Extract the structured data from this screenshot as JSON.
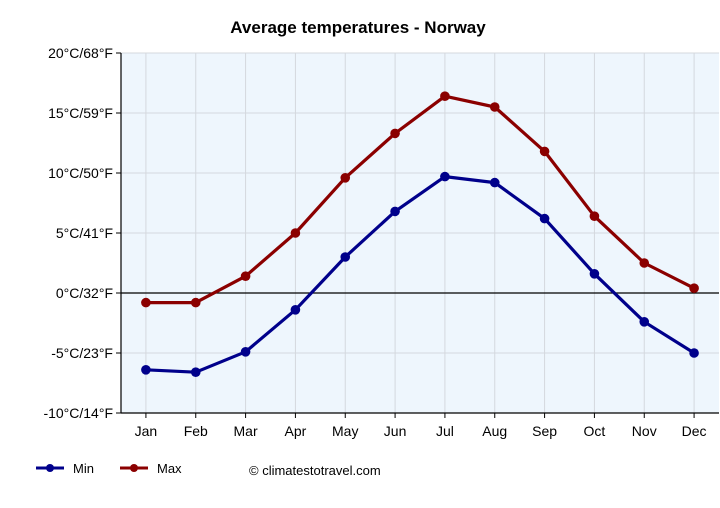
{
  "chart_data": {
    "type": "line",
    "title": "Average temperatures - Norway",
    "categories": [
      "Jan",
      "Feb",
      "Mar",
      "Apr",
      "May",
      "Jun",
      "Jul",
      "Aug",
      "Sep",
      "Oct",
      "Nov",
      "Dec"
    ],
    "y_tick_labels": [
      "20°C/68°F",
      "15°C/59°F",
      "10°C/50°F",
      "5°C/41°F",
      "0°C/32°F",
      "-5°C/23°F",
      "-10°C/14°F"
    ],
    "y_ticks": [
      20,
      15,
      10,
      5,
      0,
      -5,
      -10
    ],
    "ylim": [
      -10,
      20
    ],
    "grid": true,
    "zero_line": 0,
    "legend_position": "bottom-left",
    "series": [
      {
        "name": "Min",
        "color": "#00008b",
        "values": [
          -6.4,
          -6.6,
          -4.9,
          -1.4,
          3.0,
          6.8,
          9.7,
          9.2,
          6.2,
          1.6,
          -2.4,
          -5.0
        ]
      },
      {
        "name": "Max",
        "color": "#8b0000",
        "values": [
          -0.8,
          -0.8,
          1.4,
          5.0,
          9.6,
          13.3,
          16.4,
          15.5,
          11.8,
          6.4,
          2.5,
          0.4
        ]
      }
    ]
  },
  "credit": "© climatestotravel.com",
  "colors": {
    "plot_background": "#eef6fd",
    "grid": "#d4d8de",
    "axis": "#000000"
  }
}
